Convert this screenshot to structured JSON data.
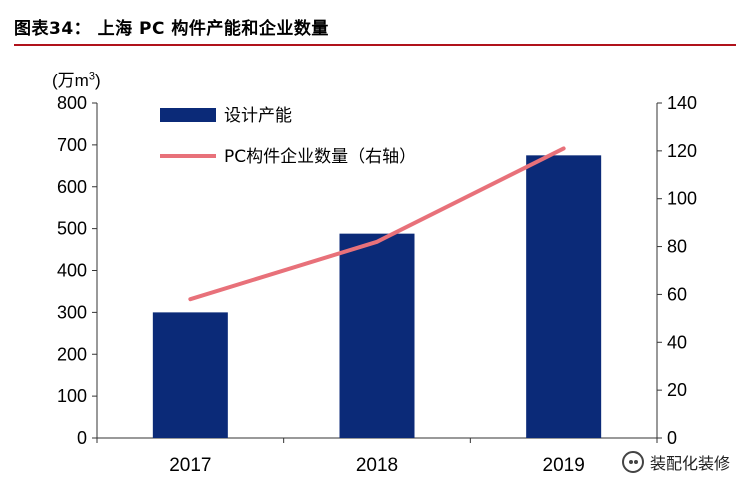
{
  "header": {
    "title": "图表34：  上海 PC 构件产能和企业数量"
  },
  "chart_data": {
    "type": "bar",
    "title": "图表34：  上海 PC 构件产能和企业数量",
    "unit_label": "(万m³)",
    "categories": [
      "2017",
      "2018",
      "2019"
    ],
    "series": [
      {
        "name": "设计产能",
        "kind": "bar",
        "axis": "left",
        "values": [
          300,
          488,
          675
        ],
        "color": "#0b2a78"
      },
      {
        "name": "PC构件企业数量（右轴）",
        "kind": "line",
        "axis": "right",
        "values": [
          58,
          82,
          121
        ],
        "color": "#e8717a"
      }
    ],
    "y_left": {
      "min": 0,
      "max": 800,
      "ticks": [
        "0",
        "100",
        "200",
        "300",
        "400",
        "500",
        "600",
        "700",
        "800"
      ]
    },
    "y_right": {
      "min": 0,
      "max": 140,
      "ticks": [
        "0",
        "20",
        "40",
        "60",
        "80",
        "100",
        "120",
        "140"
      ]
    },
    "grid": false,
    "legend_position": "top-left"
  },
  "watermark": {
    "text": "装配化装修",
    "icon": "wechat-icon"
  }
}
